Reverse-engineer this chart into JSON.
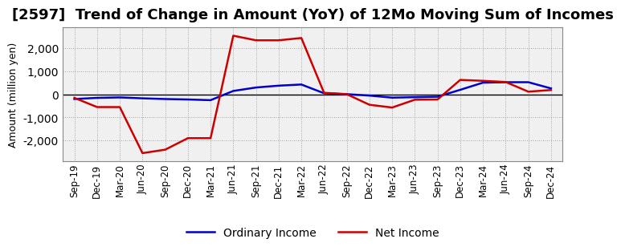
{
  "title": "[2597]  Trend of Change in Amount (YoY) of 12Mo Moving Sum of Incomes",
  "ylabel": "Amount (million yen)",
  "x_labels": [
    "Sep-19",
    "Dec-19",
    "Mar-20",
    "Jun-20",
    "Sep-20",
    "Dec-20",
    "Mar-21",
    "Jun-21",
    "Sep-21",
    "Dec-21",
    "Mar-22",
    "Jun-22",
    "Sep-22",
    "Dec-22",
    "Mar-23",
    "Jun-23",
    "Sep-23",
    "Dec-23",
    "Mar-24",
    "Jun-24",
    "Sep-24",
    "Dec-24"
  ],
  "ordinary_income": [
    -200,
    -150,
    -130,
    -170,
    -200,
    -220,
    -250,
    150,
    300,
    380,
    430,
    50,
    10,
    -50,
    -140,
    -120,
    -100,
    200,
    510,
    530,
    530,
    260
  ],
  "net_income": [
    -150,
    -550,
    -550,
    -2550,
    -2400,
    -1900,
    -1900,
    2550,
    2350,
    2350,
    2450,
    70,
    10,
    -450,
    -570,
    -230,
    -220,
    630,
    590,
    540,
    120,
    190
  ],
  "ordinary_income_color": "#0000CC",
  "net_income_color": "#CC0000",
  "ylim": [
    -2900,
    2900
  ],
  "yticks": [
    -2000,
    -1000,
    0,
    1000,
    2000
  ],
  "plot_bg_color": "#F0F0F0",
  "background_color": "#FFFFFF",
  "grid_color": "#888888",
  "line_width": 1.8,
  "title_fontsize": 13,
  "ylabel_fontsize": 9,
  "tick_fontsize": 8.5,
  "legend_fontsize": 10
}
